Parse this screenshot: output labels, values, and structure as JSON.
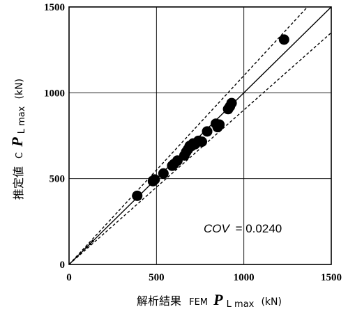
{
  "chart_data": {
    "type": "scatter",
    "xlabel": {
      "prefix": "解析結果",
      "sub": "FEM",
      "var": "P",
      "var_sub": "L max",
      "unit": "(kN)"
    },
    "ylabel": {
      "prefix": "推定値",
      "sub": "C",
      "var": "P",
      "var_sub": "L max",
      "unit": "(kN)"
    },
    "xlim": [
      0,
      1500
    ],
    "ylim": [
      0,
      1500
    ],
    "xticks": [
      "0",
      "500",
      "1000",
      "1500"
    ],
    "yticks": [
      "0",
      "500",
      "1000",
      "1500"
    ],
    "grid": true,
    "annotation": {
      "label": "COV",
      "value": "= 0.0240"
    },
    "reference_lines": [
      {
        "name": "y = x",
        "style": "solid",
        "slope": 1.0
      },
      {
        "name": "upper bound",
        "style": "dashed",
        "slope": 1.1
      },
      {
        "name": "lower bound",
        "style": "dashed",
        "slope": 0.9
      }
    ],
    "points": [
      {
        "x": 390,
        "y": 400
      },
      {
        "x": 480,
        "y": 485
      },
      {
        "x": 490,
        "y": 495
      },
      {
        "x": 540,
        "y": 530
      },
      {
        "x": 590,
        "y": 575
      },
      {
        "x": 600,
        "y": 585
      },
      {
        "x": 620,
        "y": 605
      },
      {
        "x": 660,
        "y": 635
      },
      {
        "x": 670,
        "y": 655
      },
      {
        "x": 680,
        "y": 670
      },
      {
        "x": 690,
        "y": 690
      },
      {
        "x": 700,
        "y": 690
      },
      {
        "x": 710,
        "y": 705
      },
      {
        "x": 720,
        "y": 700
      },
      {
        "x": 740,
        "y": 720
      },
      {
        "x": 760,
        "y": 715
      },
      {
        "x": 790,
        "y": 775
      },
      {
        "x": 840,
        "y": 820
      },
      {
        "x": 850,
        "y": 800
      },
      {
        "x": 860,
        "y": 815
      },
      {
        "x": 910,
        "y": 905
      },
      {
        "x": 920,
        "y": 920
      },
      {
        "x": 930,
        "y": 940
      },
      {
        "x": 1230,
        "y": 1310
      }
    ],
    "small_points": [
      {
        "x": 100,
        "y": 100
      },
      {
        "x": 120,
        "y": 120
      },
      {
        "x": 135,
        "y": 135
      }
    ]
  }
}
